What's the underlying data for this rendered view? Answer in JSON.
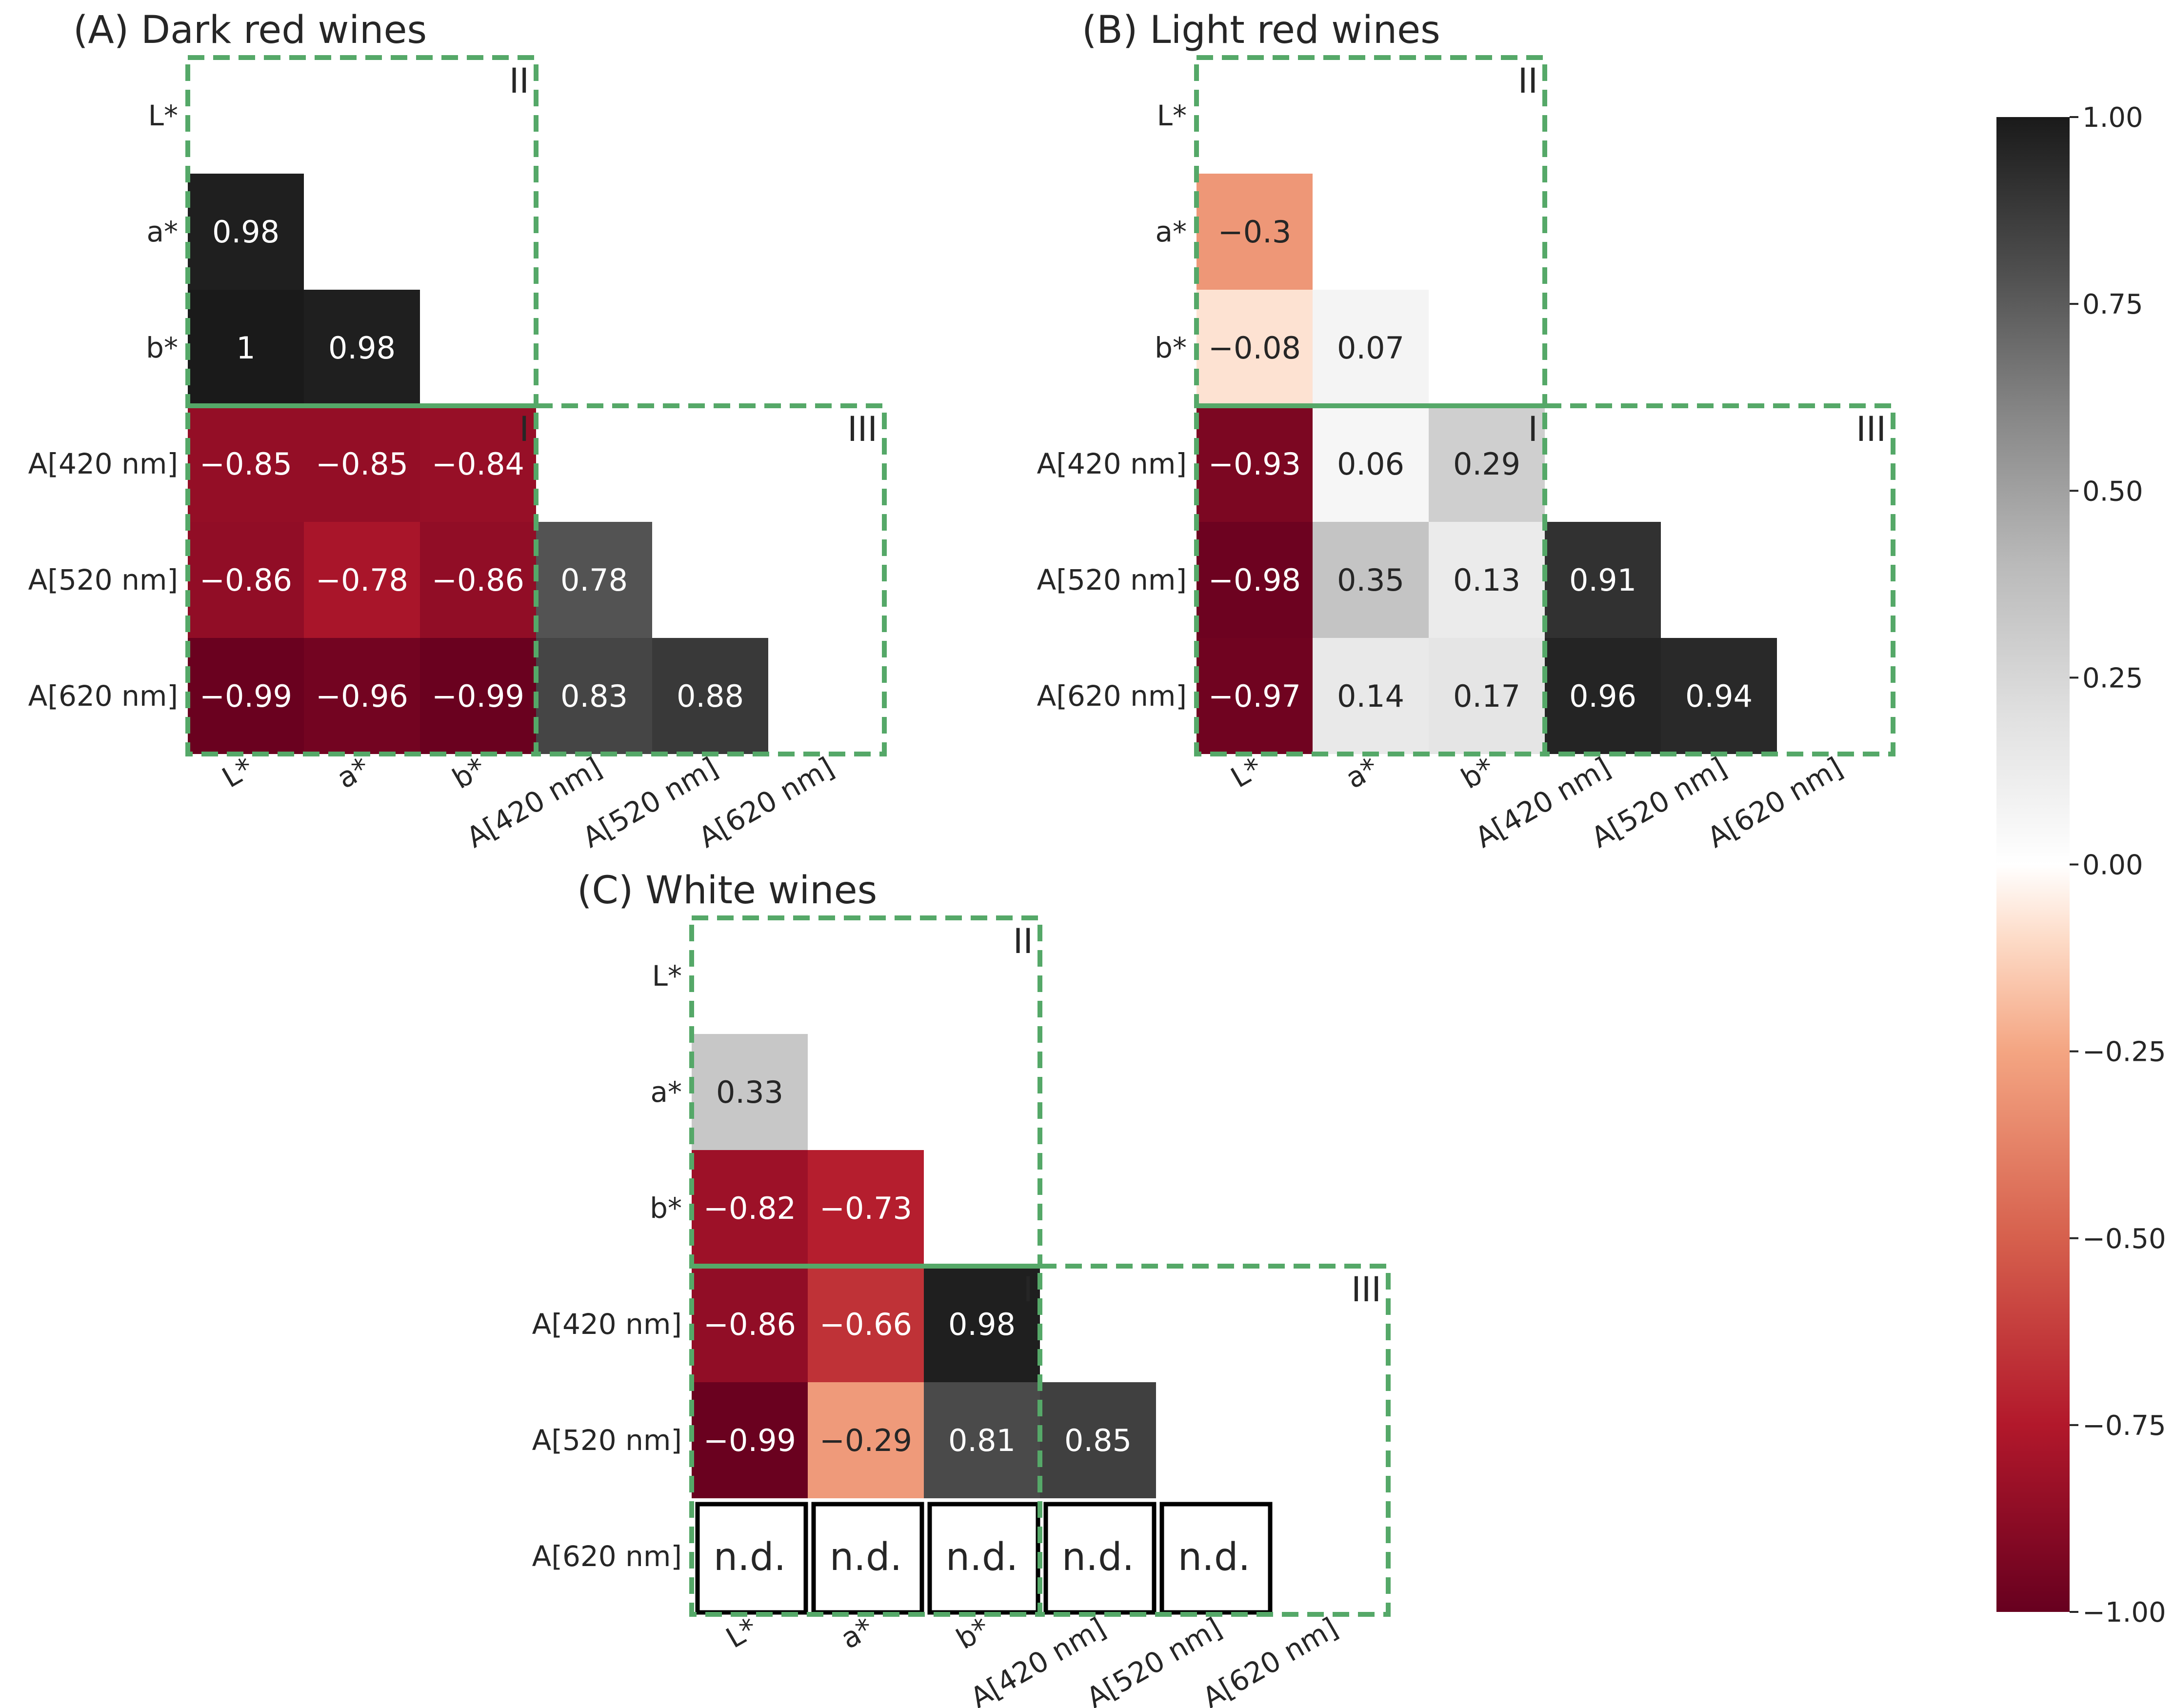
{
  "chart_data": [
    {
      "type": "heatmap",
      "title": "(A) Dark red wines",
      "variables": [
        "L*",
        "a*",
        "b*",
        "A[420 nm]",
        "A[520 nm]",
        "A[620 nm]"
      ],
      "values": [
        [
          null,
          null,
          null,
          null,
          null,
          null
        ],
        [
          0.98,
          null,
          null,
          null,
          null,
          null
        ],
        [
          1,
          0.98,
          null,
          null,
          null,
          null
        ],
        [
          -0.85,
          -0.85,
          -0.84,
          null,
          null,
          null
        ],
        [
          -0.86,
          -0.78,
          -0.86,
          0.78,
          null,
          null
        ],
        [
          -0.99,
          -0.96,
          -0.99,
          0.83,
          0.88,
          null
        ]
      ],
      "labels": [
        [
          "",
          "",
          "",
          "",
          "",
          ""
        ],
        [
          "0.98",
          "",
          "",
          "",
          "",
          ""
        ],
        [
          "1",
          "0.98",
          "",
          "",
          "",
          ""
        ],
        [
          "−0.85",
          "−0.85",
          "−0.84",
          "",
          "",
          ""
        ],
        [
          "−0.86",
          "−0.78",
          "−0.86",
          "0.78",
          "",
          ""
        ],
        [
          "−0.99",
          "−0.96",
          "−0.99",
          "0.83",
          "0.88",
          ""
        ]
      ],
      "regions": [
        {
          "label": "II",
          "rows": [
            0,
            2
          ],
          "cols": [
            0,
            2
          ]
        },
        {
          "label": "I",
          "rows": [
            3,
            5
          ],
          "cols": [
            0,
            2
          ]
        },
        {
          "label": "III",
          "rows": [
            3,
            5
          ],
          "cols": [
            3,
            5
          ]
        }
      ]
    },
    {
      "type": "heatmap",
      "title": "(B) Light red wines",
      "variables": [
        "L*",
        "a*",
        "b*",
        "A[420 nm]",
        "A[520 nm]",
        "A[620 nm]"
      ],
      "values": [
        [
          null,
          null,
          null,
          null,
          null,
          null
        ],
        [
          -0.3,
          null,
          null,
          null,
          null,
          null
        ],
        [
          -0.08,
          0.07,
          null,
          null,
          null,
          null
        ],
        [
          -0.93,
          0.06,
          0.29,
          null,
          null,
          null
        ],
        [
          -0.98,
          0.35,
          0.13,
          0.91,
          null,
          null
        ],
        [
          -0.97,
          0.14,
          0.17,
          0.96,
          0.94,
          null
        ]
      ],
      "labels": [
        [
          "",
          "",
          "",
          "",
          "",
          ""
        ],
        [
          "−0.3",
          "",
          "",
          "",
          "",
          ""
        ],
        [
          "−0.08",
          "0.07",
          "",
          "",
          "",
          ""
        ],
        [
          "−0.93",
          "0.06",
          "0.29",
          "",
          "",
          ""
        ],
        [
          "−0.98",
          "0.35",
          "0.13",
          "0.91",
          "",
          ""
        ],
        [
          "−0.97",
          "0.14",
          "0.17",
          "0.96",
          "0.94",
          ""
        ]
      ],
      "regions": [
        {
          "label": "II",
          "rows": [
            0,
            2
          ],
          "cols": [
            0,
            2
          ]
        },
        {
          "label": "I",
          "rows": [
            3,
            5
          ],
          "cols": [
            0,
            2
          ]
        },
        {
          "label": "III",
          "rows": [
            3,
            5
          ],
          "cols": [
            3,
            5
          ]
        }
      ]
    },
    {
      "type": "heatmap",
      "title": "(C) White wines",
      "variables": [
        "L*",
        "a*",
        "b*",
        "A[420 nm]",
        "A[520 nm]",
        "A[620 nm]"
      ],
      "values": [
        [
          null,
          null,
          null,
          null,
          null,
          null
        ],
        [
          0.33,
          null,
          null,
          null,
          null,
          null
        ],
        [
          -0.82,
          -0.73,
          null,
          null,
          null,
          null
        ],
        [
          -0.86,
          -0.66,
          0.98,
          null,
          null,
          null
        ],
        [
          -0.99,
          -0.29,
          0.81,
          0.85,
          null,
          null
        ],
        [
          "n.d.",
          "n.d.",
          "n.d.",
          "n.d.",
          "n.d.",
          null
        ]
      ],
      "labels": [
        [
          "",
          "",
          "",
          "",
          "",
          ""
        ],
        [
          "0.33",
          "",
          "",
          "",
          "",
          ""
        ],
        [
          "−0.82",
          "−0.73",
          "",
          "",
          "",
          ""
        ],
        [
          "−0.86",
          "−0.66",
          "0.98",
          "",
          "",
          ""
        ],
        [
          "−0.99",
          "−0.29",
          "0.81",
          "0.85",
          "",
          ""
        ],
        [
          "n.d.",
          "n.d.",
          "n.d.",
          "n.d.",
          "n.d.",
          ""
        ]
      ],
      "regions": [
        {
          "label": "II",
          "rows": [
            0,
            2
          ],
          "cols": [
            0,
            2
          ]
        },
        {
          "label": "I",
          "rows": [
            3,
            5
          ],
          "cols": [
            0,
            2
          ]
        },
        {
          "label": "III",
          "rows": [
            3,
            5
          ],
          "cols": [
            3,
            5
          ]
        }
      ]
    }
  ],
  "colorbar": {
    "range": [
      -1,
      1
    ],
    "ticks": [
      1,
      0.75,
      0.5,
      0.25,
      0,
      -0.25,
      -0.5,
      -0.75,
      -1
    ],
    "tick_labels": [
      "1.00",
      "0.75",
      "0.50",
      "0.25",
      "0.00",
      "−0.25",
      "−0.50",
      "−0.75",
      "−1.00"
    ],
    "color_stops": [
      {
        "value": -1.0,
        "color": "#67001f"
      },
      {
        "value": -0.75,
        "color": "#b2182b"
      },
      {
        "value": -0.5,
        "color": "#d6604d"
      },
      {
        "value": -0.25,
        "color": "#f4a582"
      },
      {
        "value": -0.1,
        "color": "#fddbc7"
      },
      {
        "value": 0.0,
        "color": "#ffffff"
      },
      {
        "value": 0.2,
        "color": "#e0e0e0"
      },
      {
        "value": 0.4,
        "color": "#bababa"
      },
      {
        "value": 0.6,
        "color": "#878787"
      },
      {
        "value": 0.8,
        "color": "#4d4d4d"
      },
      {
        "value": 1.0,
        "color": "#1a1a1a"
      }
    ]
  },
  "colors": {
    "region_border": "#55a868",
    "text": "#262626",
    "nd_border": "#000000"
  }
}
